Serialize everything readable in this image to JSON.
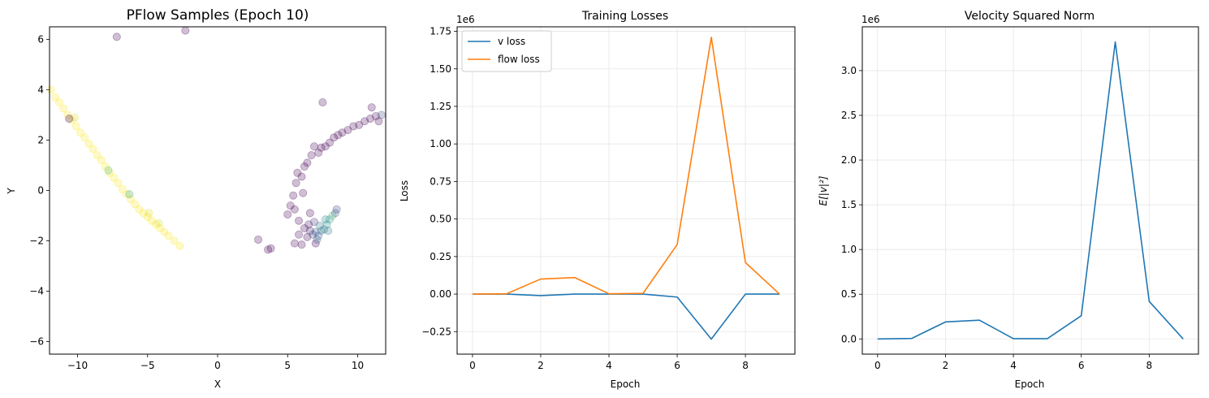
{
  "chart_data": [
    {
      "type": "scatter",
      "title": "PFlow Samples (Epoch 10)",
      "xlabel": "X",
      "ylabel": "Y",
      "xlim": [
        -12,
        12
      ],
      "ylim": [
        -6.5,
        6.5
      ],
      "xticks": [
        "−10",
        "−5",
        "0",
        "5",
        "10"
      ],
      "yticks": [
        "−6",
        "−4",
        "−2",
        "0",
        "2",
        "4",
        "6"
      ],
      "xtick_values": [
        -10,
        -5,
        0,
        5,
        10
      ],
      "ytick_values": [
        -6,
        -4,
        -2,
        0,
        2,
        4,
        6
      ],
      "grid": false,
      "legend": "none",
      "colormap": "viridis",
      "alpha": 0.25,
      "points": [
        {
          "x": -11.9,
          "y": 4.0,
          "c": 1.0
        },
        {
          "x": -11.6,
          "y": 3.7,
          "c": 1.0
        },
        {
          "x": -11.3,
          "y": 3.5,
          "c": 1.0
        },
        {
          "x": -11.0,
          "y": 3.25,
          "c": 1.0
        },
        {
          "x": -10.7,
          "y": 3.0,
          "c": 1.0
        },
        {
          "x": -10.4,
          "y": 2.8,
          "c": 1.0
        },
        {
          "x": -10.1,
          "y": 2.55,
          "c": 1.0
        },
        {
          "x": -9.8,
          "y": 2.3,
          "c": 1.0
        },
        {
          "x": -9.5,
          "y": 2.1,
          "c": 1.0
        },
        {
          "x": -9.2,
          "y": 1.85,
          "c": 1.0
        },
        {
          "x": -8.9,
          "y": 1.65,
          "c": 1.0
        },
        {
          "x": -8.6,
          "y": 1.4,
          "c": 1.0
        },
        {
          "x": -8.3,
          "y": 1.2,
          "c": 1.0
        },
        {
          "x": -8.0,
          "y": 0.95,
          "c": 1.0
        },
        {
          "x": -7.7,
          "y": 0.7,
          "c": 1.0
        },
        {
          "x": -7.4,
          "y": 0.5,
          "c": 1.0
        },
        {
          "x": -7.1,
          "y": 0.3,
          "c": 1.0
        },
        {
          "x": -6.8,
          "y": 0.05,
          "c": 1.0
        },
        {
          "x": -6.5,
          "y": -0.15,
          "c": 1.0
        },
        {
          "x": -6.2,
          "y": -0.35,
          "c": 1.0
        },
        {
          "x": -5.9,
          "y": -0.55,
          "c": 1.0
        },
        {
          "x": -5.6,
          "y": -0.75,
          "c": 1.0
        },
        {
          "x": -5.3,
          "y": -0.9,
          "c": 1.0
        },
        {
          "x": -5.0,
          "y": -1.05,
          "c": 1.0
        },
        {
          "x": -4.7,
          "y": -1.2,
          "c": 1.0
        },
        {
          "x": -4.4,
          "y": -1.35,
          "c": 1.0
        },
        {
          "x": -4.1,
          "y": -1.5,
          "c": 1.0
        },
        {
          "x": -3.8,
          "y": -1.65,
          "c": 1.0
        },
        {
          "x": -3.5,
          "y": -1.8,
          "c": 1.0
        },
        {
          "x": -3.1,
          "y": -2.0,
          "c": 1.0
        },
        {
          "x": -2.7,
          "y": -2.2,
          "c": 1.0
        },
        {
          "x": -10.2,
          "y": 2.9,
          "c": 0.95
        },
        {
          "x": -7.8,
          "y": 0.8,
          "c": 0.7
        },
        {
          "x": -6.3,
          "y": -0.15,
          "c": 0.6
        },
        {
          "x": -4.9,
          "y": -0.9,
          "c": 0.95
        },
        {
          "x": -4.2,
          "y": -1.3,
          "c": 0.95
        },
        {
          "x": -7.2,
          "y": 6.1,
          "c": 0.0
        },
        {
          "x": -2.3,
          "y": 6.35,
          "c": 0.0
        },
        {
          "x": -10.6,
          "y": 2.85,
          "c": 0.0
        },
        {
          "x": 2.9,
          "y": -1.95,
          "c": 0.0
        },
        {
          "x": 3.6,
          "y": -2.35,
          "c": 0.0
        },
        {
          "x": 3.8,
          "y": -2.3,
          "c": 0.0
        },
        {
          "x": 5.0,
          "y": -0.95,
          "c": 0.0
        },
        {
          "x": 5.2,
          "y": -0.6,
          "c": 0.0
        },
        {
          "x": 5.4,
          "y": -0.2,
          "c": 0.0
        },
        {
          "x": 5.5,
          "y": -0.75,
          "c": 0.0
        },
        {
          "x": 5.6,
          "y": 0.3,
          "c": 0.0
        },
        {
          "x": 5.7,
          "y": 0.7,
          "c": 0.0
        },
        {
          "x": 5.8,
          "y": -1.2,
          "c": 0.0
        },
        {
          "x": 6.0,
          "y": 0.55,
          "c": 0.0
        },
        {
          "x": 6.1,
          "y": -0.1,
          "c": 0.0
        },
        {
          "x": 6.2,
          "y": 0.95,
          "c": 0.0
        },
        {
          "x": 6.4,
          "y": 1.1,
          "c": 0.0
        },
        {
          "x": 6.6,
          "y": -0.9,
          "c": 0.0
        },
        {
          "x": 6.7,
          "y": 1.4,
          "c": 0.0
        },
        {
          "x": 6.9,
          "y": 1.75,
          "c": 0.0
        },
        {
          "x": 7.0,
          "y": -2.1,
          "c": 0.0
        },
        {
          "x": 7.2,
          "y": 1.5,
          "c": 0.0
        },
        {
          "x": 7.4,
          "y": 1.7,
          "c": 0.0
        },
        {
          "x": 7.5,
          "y": 3.5,
          "c": 0.0
        },
        {
          "x": 7.7,
          "y": 1.75,
          "c": 0.0
        },
        {
          "x": 8.0,
          "y": 1.9,
          "c": 0.0
        },
        {
          "x": 8.3,
          "y": 2.1,
          "c": 0.0
        },
        {
          "x": 8.6,
          "y": 2.2,
          "c": 0.0
        },
        {
          "x": 8.9,
          "y": 2.3,
          "c": 0.0
        },
        {
          "x": 9.3,
          "y": 2.4,
          "c": 0.0
        },
        {
          "x": 9.7,
          "y": 2.55,
          "c": 0.0
        },
        {
          "x": 10.1,
          "y": 2.6,
          "c": 0.0
        },
        {
          "x": 10.5,
          "y": 2.75,
          "c": 0.0
        },
        {
          "x": 10.9,
          "y": 2.85,
          "c": 0.0
        },
        {
          "x": 11.3,
          "y": 2.95,
          "c": 0.05
        },
        {
          "x": 11.7,
          "y": 3.0,
          "c": 0.2
        },
        {
          "x": 11.0,
          "y": 3.3,
          "c": 0.0
        },
        {
          "x": 11.5,
          "y": 2.75,
          "c": 0.0
        },
        {
          "x": 5.5,
          "y": -2.1,
          "c": 0.0
        },
        {
          "x": 5.8,
          "y": -1.75,
          "c": 0.0
        },
        {
          "x": 6.0,
          "y": -2.15,
          "c": 0.0
        },
        {
          "x": 6.2,
          "y": -1.5,
          "c": 0.0
        },
        {
          "x": 6.4,
          "y": -1.85,
          "c": 0.0
        },
        {
          "x": 6.6,
          "y": -1.6,
          "c": 0.1
        },
        {
          "x": 6.8,
          "y": -1.75,
          "c": 0.2
        },
        {
          "x": 7.0,
          "y": -1.65,
          "c": 0.25
        },
        {
          "x": 7.2,
          "y": -1.8,
          "c": 0.3
        },
        {
          "x": 7.4,
          "y": -1.6,
          "c": 0.35
        },
        {
          "x": 7.6,
          "y": -1.55,
          "c": 0.45
        },
        {
          "x": 7.8,
          "y": -1.35,
          "c": 0.5
        },
        {
          "x": 8.0,
          "y": -1.15,
          "c": 0.55
        },
        {
          "x": 8.2,
          "y": -1.0,
          "c": 0.65
        },
        {
          "x": 8.4,
          "y": -0.9,
          "c": 0.3
        },
        {
          "x": 8.5,
          "y": -0.75,
          "c": 0.2
        },
        {
          "x": 7.9,
          "y": -1.6,
          "c": 0.4
        },
        {
          "x": 7.1,
          "y": -1.95,
          "c": 0.3
        },
        {
          "x": 6.5,
          "y": -1.35,
          "c": 0.05
        },
        {
          "x": 6.9,
          "y": -1.25,
          "c": 0.15
        },
        {
          "x": 7.3,
          "y": -1.4,
          "c": 0.4
        },
        {
          "x": 7.7,
          "y": -1.15,
          "c": 0.45
        }
      ]
    },
    {
      "type": "line",
      "title": "Training Losses",
      "xlabel": "Epoch",
      "ylabel": "Loss",
      "offset_text": "1e6",
      "x": [
        0,
        1,
        2,
        3,
        4,
        5,
        6,
        7,
        8,
        9
      ],
      "xlim": [
        -0.45,
        9.45
      ],
      "ylim": [
        -0.4,
        1.78
      ],
      "xticks": [
        "0",
        "2",
        "4",
        "6",
        "8"
      ],
      "xtick_values": [
        0,
        2,
        4,
        6,
        8
      ],
      "yticks": [
        "−0.25",
        "0.00",
        "0.25",
        "0.50",
        "0.75",
        "1.00",
        "1.25",
        "1.50",
        "1.75"
      ],
      "ytick_values": [
        -0.25,
        0,
        0.25,
        0.5,
        0.75,
        1.0,
        1.25,
        1.5,
        1.75
      ],
      "grid": true,
      "legend": "upper-left",
      "series": [
        {
          "name": "v loss",
          "color": "#1f77b4",
          "values": [
            0.0,
            0.0,
            -0.01,
            0.0,
            0.0,
            0.0,
            -0.02,
            -0.3,
            0.0,
            0.0
          ]
        },
        {
          "name": "flow loss",
          "color": "#ff7f0e",
          "values": [
            0.0,
            0.002,
            0.1,
            0.11,
            0.002,
            0.005,
            0.33,
            1.71,
            0.21,
            0.0
          ]
        }
      ]
    },
    {
      "type": "line",
      "title": "Velocity Squared Norm",
      "xlabel": "Epoch",
      "ylabel": "E[|v|²]",
      "offset_text": "1e6",
      "x": [
        0,
        1,
        2,
        3,
        4,
        5,
        6,
        7,
        8,
        9
      ],
      "xlim": [
        -0.45,
        9.45
      ],
      "ylim": [
        -0.17,
        3.49
      ],
      "xticks": [
        "0",
        "2",
        "4",
        "6",
        "8"
      ],
      "xtick_values": [
        0,
        2,
        4,
        6,
        8
      ],
      "yticks": [
        "0.0",
        "0.5",
        "1.0",
        "1.5",
        "2.0",
        "2.5",
        "3.0"
      ],
      "ytick_values": [
        0,
        0.5,
        1.0,
        1.5,
        2.0,
        2.5,
        3.0
      ],
      "grid": true,
      "legend": "none",
      "series": [
        {
          "color": "#1f77b4",
          "values": [
            0.0,
            0.005,
            0.19,
            0.21,
            0.003,
            0.003,
            0.26,
            3.32,
            0.42,
            0.0
          ]
        }
      ]
    }
  ]
}
